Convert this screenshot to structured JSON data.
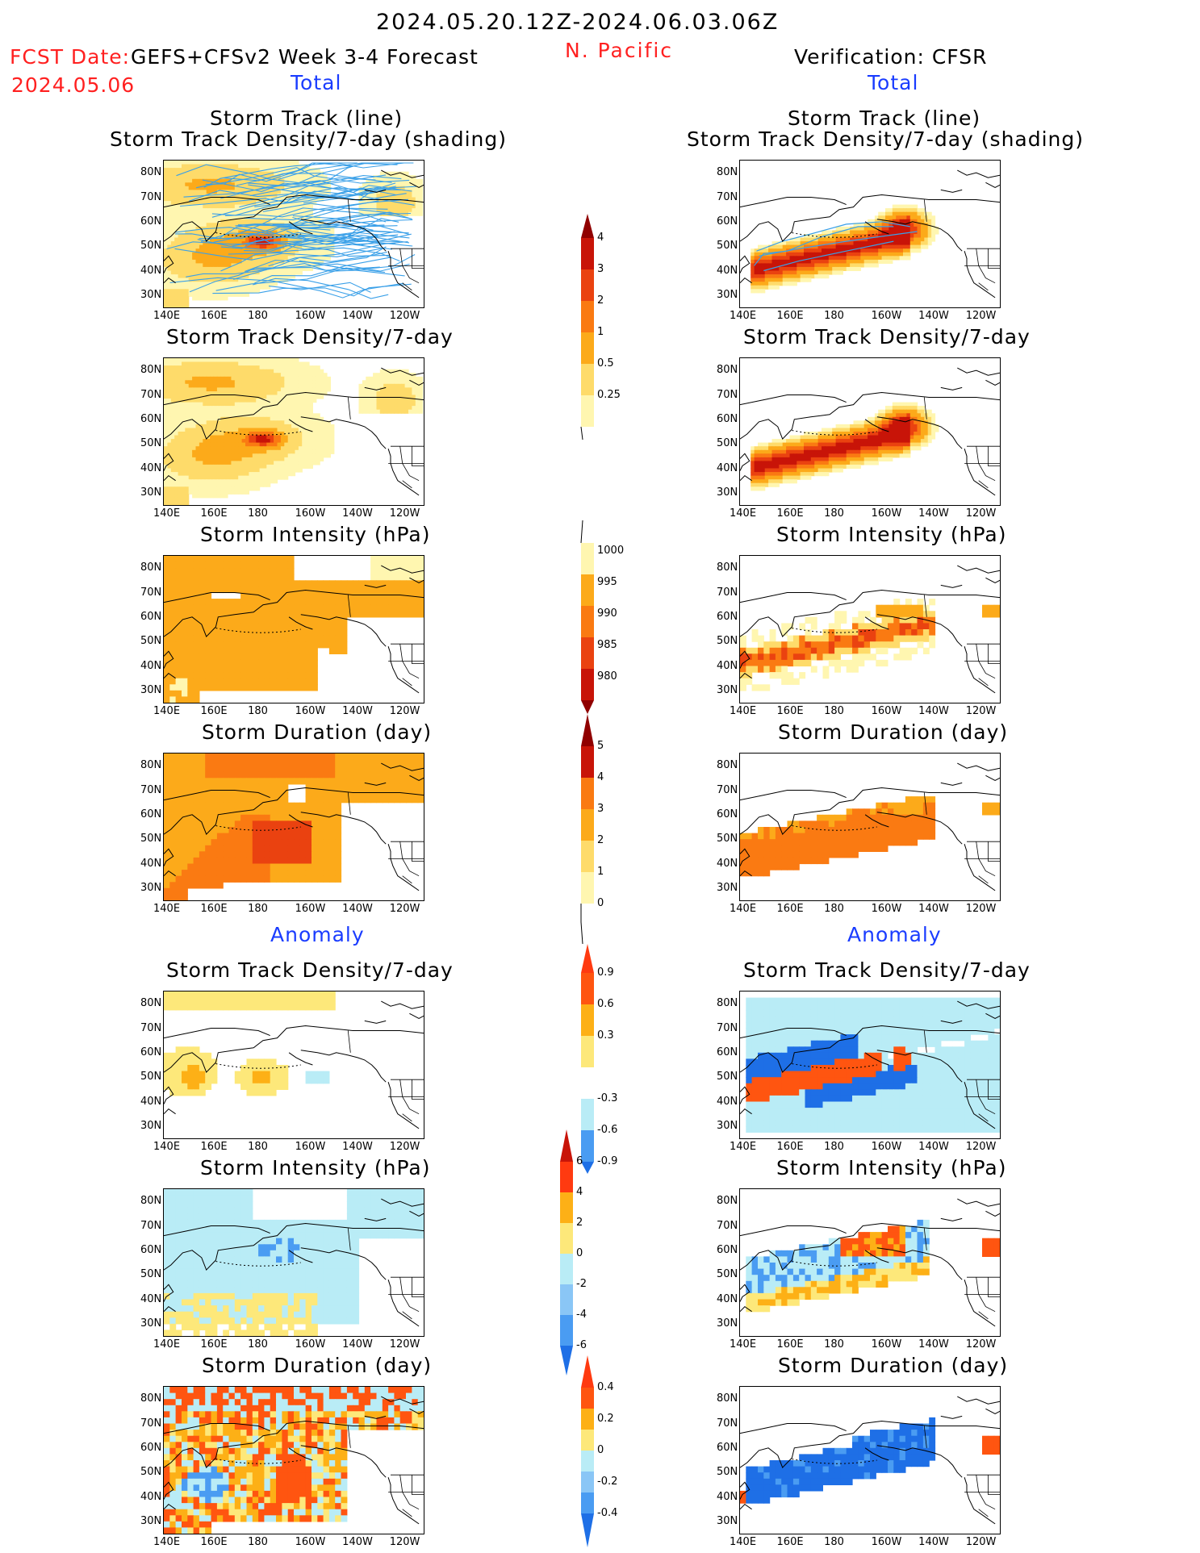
{
  "header": {
    "period": "2024.05.20.12Z-2024.06.03.06Z",
    "region": "N. Pacific",
    "fcst_date_label": "FCST Date:",
    "fcst_date": "2024.05.06",
    "model_title": "GEFS+CFSv2 Week 3-4 Forecast",
    "verification_title": "Verification: CFSR",
    "total_label_left": "Total",
    "total_label_right": "Total",
    "anomaly_label_left": "Anomaly",
    "anomaly_label_right": "Anomaly"
  },
  "axes": {
    "lon_ticks": [
      "140E",
      "160E",
      "180",
      "160W",
      "140W",
      "120W"
    ],
    "lat_ticks": [
      "80N",
      "70N",
      "60N",
      "50N",
      "40N",
      "30N"
    ]
  },
  "panel_titles": {
    "track_line": "Storm Track (line)",
    "track_shading": "Storm Track Density/7-day (shading)",
    "density": "Storm Track Density/7-day",
    "intensity": "Storm Intensity (hPa)",
    "duration": "Storm Duration (day)"
  },
  "colorbars": {
    "density_total": [
      "0.25",
      "0.5",
      "1",
      "2",
      "3",
      "4"
    ],
    "intensity_total": [
      "1000",
      "995",
      "990",
      "985",
      "980"
    ],
    "duration_total": [
      "0",
      "1",
      "2",
      "3",
      "4",
      "5"
    ],
    "density_anom": [
      "0.9",
      "0.6",
      "0.3",
      "-0.3",
      "-0.6",
      "-0.9"
    ],
    "intensity_anom": [
      "6",
      "4",
      "2",
      "0",
      "-2",
      "-4",
      "-6"
    ],
    "duration_anom": [
      "0.4",
      "0.2",
      "0",
      "-0.2",
      "-0.4"
    ]
  },
  "colors": {
    "title_red": "#ff2020",
    "label_blue": "#1a3cff",
    "track_line": "#3aa0e8"
  },
  "chart_data": [
    {
      "type": "heatmap",
      "panel": "forecast total storm track (line) and density (shading)",
      "column": "GEFS+CFSv2",
      "max_center": {
        "lat": 52,
        "lon": 180
      }
    },
    {
      "type": "heatmap",
      "panel": "forecast total storm track density",
      "column": "GEFS+CFSv2",
      "max_center": {
        "lat": 52,
        "lon": 180
      }
    },
    {
      "type": "heatmap",
      "panel": "forecast total storm intensity",
      "column": "GEFS+CFSv2"
    },
    {
      "type": "heatmap",
      "panel": "forecast total storm duration",
      "column": "GEFS+CFSv2"
    },
    {
      "type": "heatmap",
      "panel": "forecast anomaly storm track density",
      "column": "GEFS+CFSv2"
    },
    {
      "type": "heatmap",
      "panel": "forecast anomaly storm intensity",
      "column": "GEFS+CFSv2"
    },
    {
      "type": "heatmap",
      "panel": "forecast anomaly storm duration",
      "column": "GEFS+CFSv2"
    },
    {
      "type": "heatmap",
      "panel": "verification total storm track (line) and density (shading)",
      "column": "CFSR"
    },
    {
      "type": "heatmap",
      "panel": "verification total storm track density",
      "column": "CFSR"
    },
    {
      "type": "heatmap",
      "panel": "verification total storm intensity",
      "column": "CFSR"
    },
    {
      "type": "heatmap",
      "panel": "verification total storm duration",
      "column": "CFSR"
    },
    {
      "type": "heatmap",
      "panel": "verification anomaly storm track density",
      "column": "CFSR"
    },
    {
      "type": "heatmap",
      "panel": "verification anomaly storm intensity",
      "column": "CFSR"
    },
    {
      "type": "heatmap",
      "panel": "verification anomaly storm duration",
      "column": "CFSR"
    }
  ]
}
